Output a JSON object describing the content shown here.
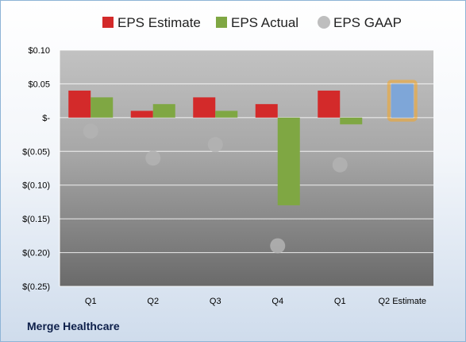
{
  "company": "Merge Healthcare",
  "chart_data": {
    "type": "bar",
    "categories": [
      "Q1",
      "Q2",
      "Q3",
      "Q4",
      "Q1",
      "Q2 Estimate"
    ],
    "series": [
      {
        "name": "EPS Estimate",
        "kind": "bar",
        "color": "#d32a2a",
        "values": [
          0.04,
          0.01,
          0.03,
          0.02,
          0.04,
          null
        ]
      },
      {
        "name": "EPS Actual",
        "kind": "bar",
        "color": "#7fa743",
        "values": [
          0.03,
          0.02,
          0.01,
          -0.13,
          -0.01,
          null
        ]
      },
      {
        "name": "EPS GAAP",
        "kind": "marker",
        "color": "#b3b3b3",
        "values": [
          -0.02,
          -0.06,
          -0.04,
          -0.19,
          -0.07,
          null
        ]
      },
      {
        "name": "",
        "kind": "bar",
        "highlight": true,
        "color": "#7ea6d8",
        "values": [
          null,
          null,
          null,
          null,
          null,
          0.05
        ]
      }
    ],
    "ylim": [
      -0.25,
      0.1
    ],
    "yticks": [
      0.1,
      0.05,
      0,
      -0.05,
      -0.1,
      -0.15,
      -0.2,
      -0.25
    ],
    "ytick_labels": [
      "$0.10",
      "$0.05",
      "$-",
      "$(0.05)",
      "$(0.10)",
      "$(0.15)",
      "$(0.20)",
      "$(0.25)"
    ],
    "grid": true,
    "legend": "top"
  }
}
